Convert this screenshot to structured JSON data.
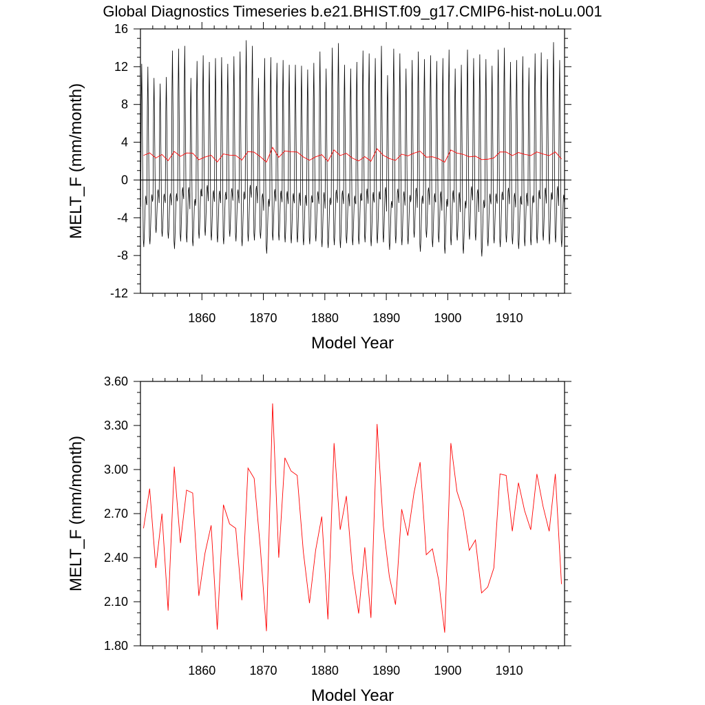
{
  "title": "Global Diagnostics Timeseries b.e21.BHIST.f09_g17.CMIP6-hist-noLu.001",
  "chart_data": [
    {
      "type": "line",
      "xlabel": "Model Year",
      "ylabel": "MELT_F (mm/month)",
      "xlim": [
        1850,
        1919
      ],
      "ylim": [
        -12,
        16
      ],
      "xticks": [
        1860,
        1870,
        1880,
        1890,
        1900,
        1910
      ],
      "yticks": [
        -12,
        -8,
        -4,
        0,
        4,
        8,
        12,
        16
      ],
      "ytick_labels": [
        "-12",
        "-8",
        "-4",
        "0",
        "4",
        "8",
        "12",
        "16"
      ],
      "zero_line": true,
      "series": [
        {
          "color": "#000000",
          "kind": "monthly",
          "annual_max": [
            12.3,
            12.0,
            10.8,
            10.2,
            10.9,
            13.7,
            13.9,
            14.2,
            10.8,
            12.6,
            13.2,
            12.5,
            12.9,
            13.0,
            12.3,
            13.1,
            13.6,
            14.8,
            14.2,
            10.8,
            12.9,
            13.0,
            12.4,
            12.7,
            12.2,
            12.2,
            12.1,
            11.7,
            12.4,
            13.6,
            11.8,
            14.0,
            14.5,
            12.2,
            11.8,
            12.5,
            13.7,
            13.4,
            12.9,
            14.2,
            11.1,
            13.9,
            13.4,
            11.8,
            12.7,
            13.6,
            12.8,
            13.2,
            12.6,
            12.9,
            13.8,
            11.8,
            12.2,
            13.8,
            12.9,
            13.3,
            12.8,
            12.1,
            13.8,
            14.0,
            12.5,
            12.7,
            13.1,
            11.9,
            13.4,
            13.5,
            12.8,
            14.6,
            12.7,
            10.3
          ],
          "annual_min": [
            -7.1,
            -6.8,
            -5.6,
            -6.0,
            -6.2,
            -7.3,
            -6.5,
            -6.6,
            -7.0,
            -6.2,
            -5.9,
            -6.4,
            -6.6,
            -6.8,
            -6.0,
            -6.5,
            -7.0,
            -6.5,
            -6.4,
            -6.2,
            -7.8,
            -6.4,
            -6.4,
            -6.6,
            -6.7,
            -6.6,
            -6.9,
            -6.8,
            -6.5,
            -7.1,
            -7.2,
            -6.9,
            -7.2,
            -6.7,
            -6.9,
            -6.8,
            -6.6,
            -7.0,
            -6.7,
            -6.6,
            -7.4,
            -6.7,
            -6.9,
            -6.8,
            -6.1,
            -7.6,
            -6.1,
            -7.1,
            -6.6,
            -7.8,
            -6.9,
            -6.4,
            -7.8,
            -6.3,
            -6.4,
            -8.1,
            -7.0,
            -6.7,
            -7.1,
            -6.6,
            -6.8,
            -7.3,
            -7.0,
            -6.9,
            -6.7,
            -6.4,
            -6.8,
            -6.6,
            -7.1,
            -5.4
          ]
        },
        {
          "color": "#ff0000",
          "kind": "annual",
          "values": [
            2.6,
            2.87,
            2.33,
            2.7,
            2.04,
            3.02,
            2.5,
            2.86,
            2.84,
            2.14,
            2.43,
            2.62,
            1.91,
            2.76,
            2.63,
            2.6,
            2.11,
            3.01,
            2.94,
            2.47,
            1.9,
            3.45,
            2.4,
            3.08,
            2.99,
            2.96,
            2.44,
            2.09,
            2.45,
            2.68,
            1.98,
            3.18,
            2.59,
            2.82,
            2.31,
            2.02,
            2.47,
            1.99,
            3.31,
            2.62,
            2.27,
            2.08,
            2.73,
            2.55,
            2.84,
            3.05,
            2.42,
            2.46,
            2.25,
            1.89,
            3.18,
            2.85,
            2.72,
            2.45,
            2.52,
            2.16,
            2.2,
            2.33,
            2.97,
            2.96,
            2.58,
            2.91,
            2.72,
            2.59,
            2.97,
            2.75,
            2.58,
            2.97,
            2.22
          ]
        }
      ]
    },
    {
      "type": "line",
      "xlabel": "Model Year",
      "ylabel": "MELT_F (mm/month)",
      "xlim": [
        1850,
        1919
      ],
      "ylim": [
        1.8,
        3.6
      ],
      "xticks": [
        1860,
        1870,
        1880,
        1890,
        1900,
        1910
      ],
      "yticks": [
        1.8,
        2.1,
        2.4,
        2.7,
        3.0,
        3.3,
        3.6
      ],
      "ytick_labels": [
        "1.80",
        "2.10",
        "2.40",
        "2.70",
        "3.00",
        "3.30",
        "3.60"
      ],
      "series": [
        {
          "color": "#ff0000",
          "kind": "annual",
          "values": [
            2.6,
            2.87,
            2.33,
            2.7,
            2.04,
            3.02,
            2.5,
            2.86,
            2.84,
            2.14,
            2.43,
            2.62,
            1.91,
            2.76,
            2.63,
            2.6,
            2.11,
            3.01,
            2.94,
            2.47,
            1.9,
            3.45,
            2.4,
            3.08,
            2.99,
            2.96,
            2.44,
            2.09,
            2.45,
            2.68,
            1.98,
            3.18,
            2.59,
            2.82,
            2.31,
            2.02,
            2.47,
            1.99,
            3.31,
            2.62,
            2.27,
            2.08,
            2.73,
            2.55,
            2.84,
            3.05,
            2.42,
            2.46,
            2.25,
            1.89,
            3.18,
            2.85,
            2.72,
            2.45,
            2.52,
            2.16,
            2.2,
            2.33,
            2.97,
            2.96,
            2.58,
            2.91,
            2.72,
            2.59,
            2.97,
            2.75,
            2.58,
            2.97,
            2.22
          ]
        }
      ]
    }
  ]
}
